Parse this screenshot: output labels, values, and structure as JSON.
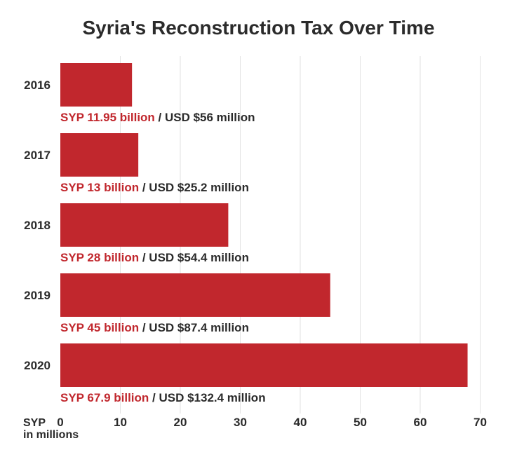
{
  "chart_data": {
    "type": "bar",
    "orientation": "horizontal",
    "title": "Syria's Reconstruction Tax Over Time",
    "categories": [
      "2016",
      "2017",
      "2018",
      "2019",
      "2020"
    ],
    "values": [
      11.95,
      13,
      28,
      45,
      67.9
    ],
    "data_labels": [
      {
        "primary": "SYP 11.95 billion",
        "secondary": " / USD $56 million"
      },
      {
        "primary": "SYP 13 billion",
        "secondary": " / USD $25.2 million"
      },
      {
        "primary": "SYP 28 billion",
        "secondary": " / USD $54.4 million"
      },
      {
        "primary": "SYP 45 billion",
        "secondary": " / USD $87.4 million"
      },
      {
        "primary": "SYP 67.9 billion",
        "secondary": " / USD $132.4 million"
      }
    ],
    "xlabel": [
      "SYP",
      "in millions"
    ],
    "xticks": [
      0,
      10,
      20,
      30,
      40,
      50,
      60,
      70
    ],
    "xlim": [
      0,
      70
    ],
    "grid": true,
    "colors": {
      "bar": "#c1272d",
      "label_primary": "#c1272d",
      "label_secondary": "#2b2b2b",
      "grid": "#e2e2e2"
    }
  }
}
